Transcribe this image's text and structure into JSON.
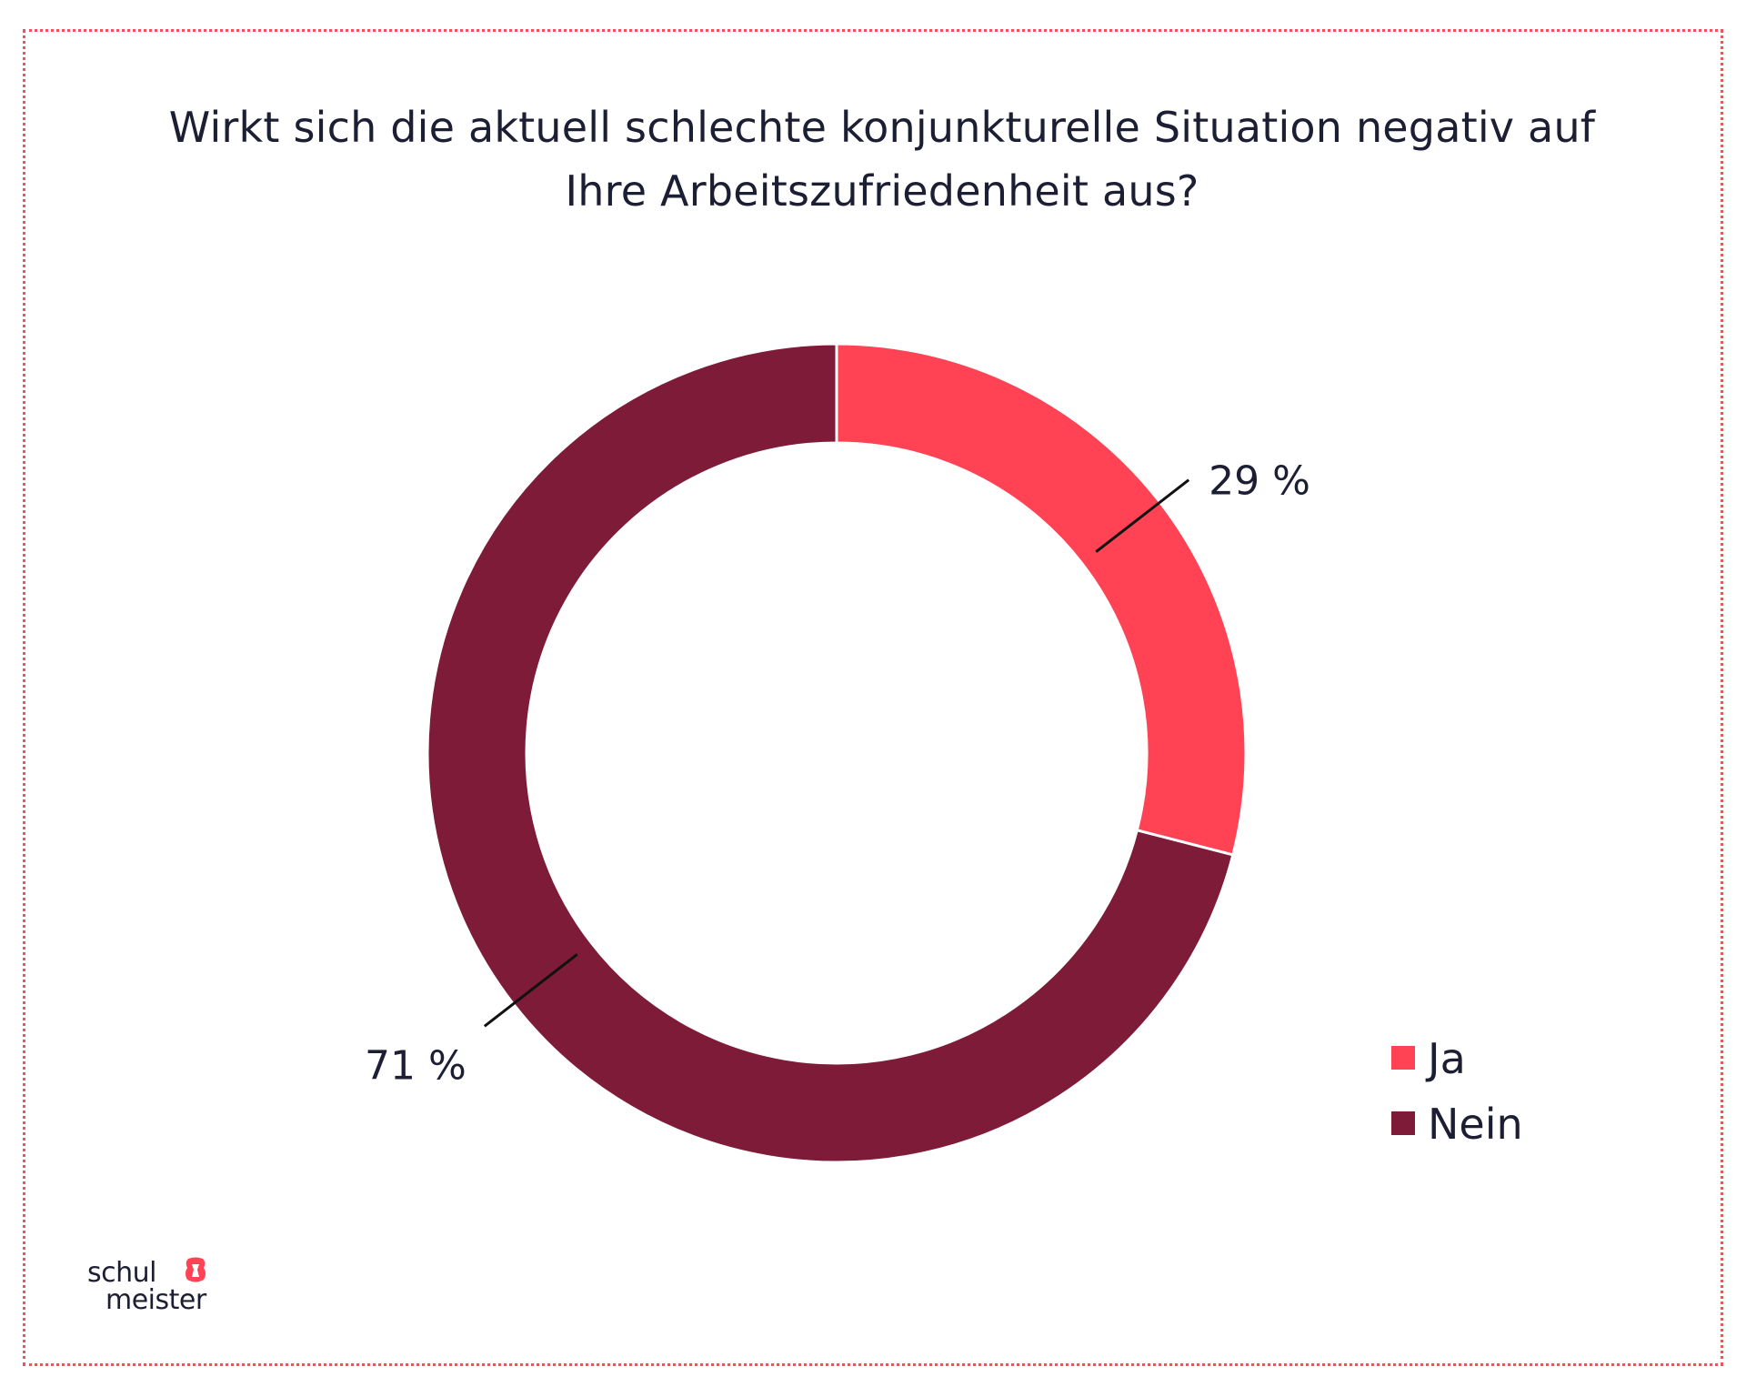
{
  "chart_data": {
    "type": "pie",
    "variant": "donut",
    "title": [
      "Wirkt sich die aktuell schlechte konjunkturelle Situation negativ auf",
      "Ihre Arbeitszufriedenheit aus?"
    ],
    "slices": [
      {
        "name": "Ja",
        "value": 29,
        "label": "29 %",
        "color": "#ff4254"
      },
      {
        "name": "Nein",
        "value": 71,
        "label": "71 %",
        "color": "#7d1b39"
      }
    ],
    "legend_position": "bottom-right"
  },
  "logo": {
    "line1": "schul",
    "line2": "meister",
    "color": "#1c1f33",
    "accent": "#ff4254"
  },
  "frame": {
    "border_color": "#f0525f"
  }
}
